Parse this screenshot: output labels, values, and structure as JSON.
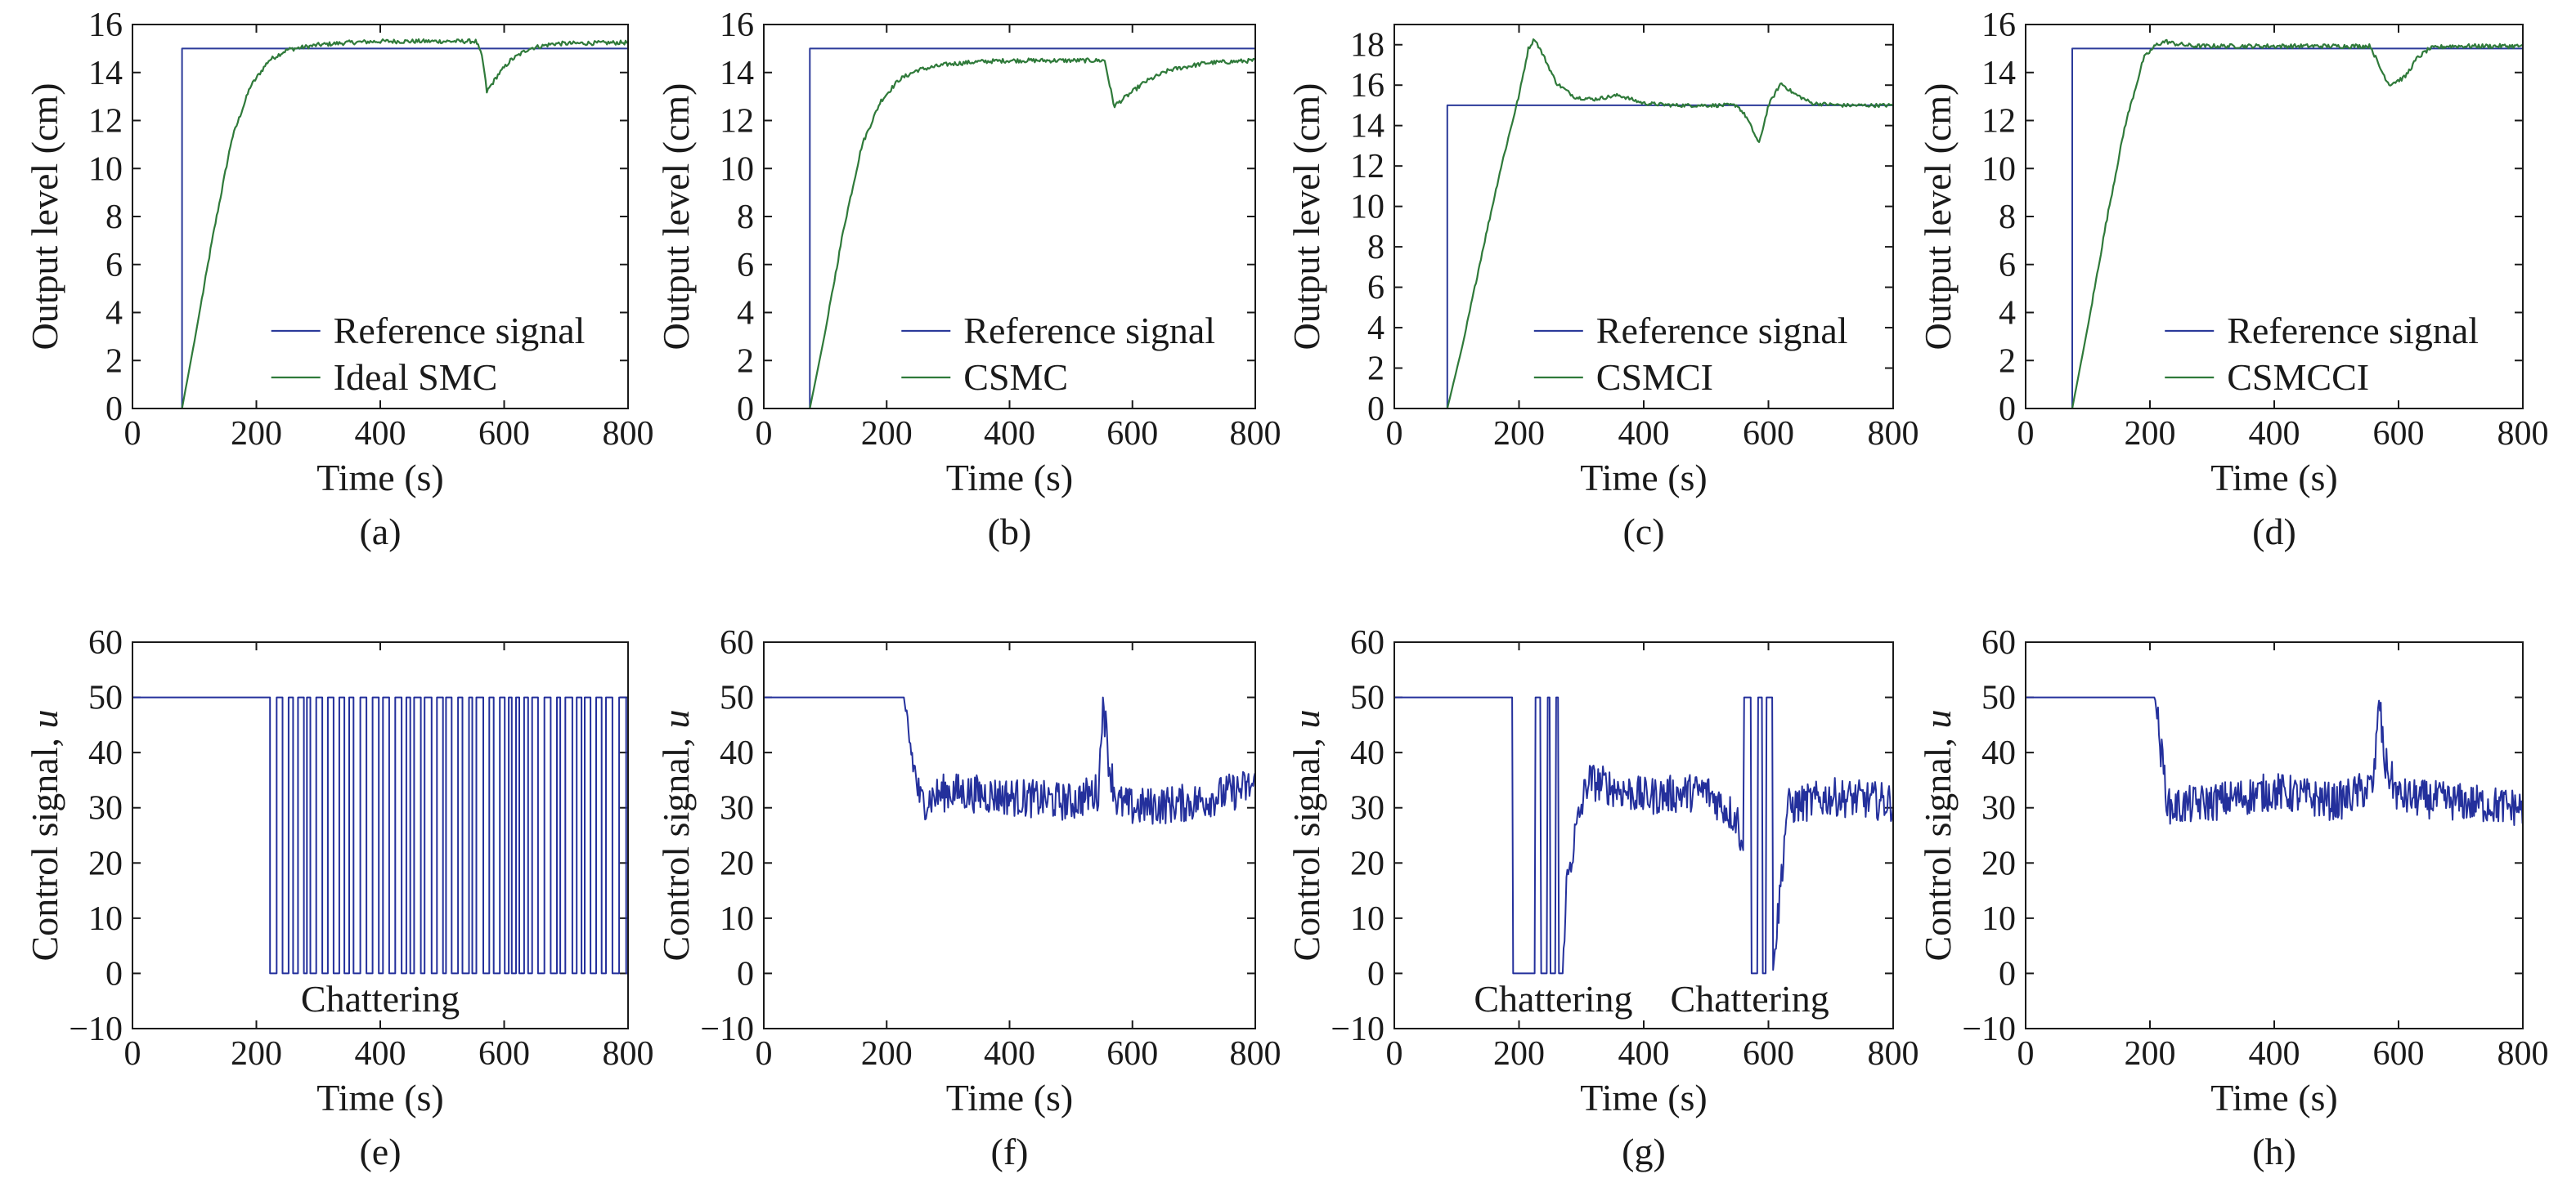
{
  "figure": {
    "colors": {
      "reference": "#2b3a9a",
      "response": "#2f7a3a",
      "control": "#24309c",
      "axis": "#1a1a1a"
    },
    "panels": [
      {
        "id": "a",
        "caption": "(a)",
        "kind": "output",
        "xlabel": "Time (s)",
        "ylabel": "Output level (cm)",
        "legend": [
          "Reference signal",
          "Ideal SMC"
        ],
        "legend_position": "bottom-right",
        "xticks": [
          "0",
          "200",
          "400",
          "600",
          "800"
        ],
        "yticks": [
          "0",
          "2",
          "4",
          "6",
          "8",
          "10",
          "12",
          "14",
          "16"
        ],
        "annotations": []
      },
      {
        "id": "b",
        "caption": "(b)",
        "kind": "output",
        "xlabel": "Time (s)",
        "ylabel": "Output level (cm)",
        "legend": [
          "Reference signal",
          "CSMC"
        ],
        "legend_position": "bottom-right",
        "xticks": [
          "0",
          "200",
          "400",
          "600",
          "800"
        ],
        "yticks": [
          "0",
          "2",
          "4",
          "6",
          "8",
          "10",
          "12",
          "14",
          "16"
        ],
        "annotations": []
      },
      {
        "id": "c",
        "caption": "(c)",
        "kind": "output",
        "xlabel": "Time (s)",
        "ylabel": "Output level (cm)",
        "legend": [
          "Reference signal",
          "CSMCI"
        ],
        "legend_position": "bottom-right",
        "xticks": [
          "0",
          "200",
          "400",
          "600",
          "800"
        ],
        "yticks": [
          "0",
          "2",
          "4",
          "6",
          "8",
          "10",
          "12",
          "14",
          "16",
          "18"
        ],
        "annotations": []
      },
      {
        "id": "d",
        "caption": "(d)",
        "kind": "output",
        "xlabel": "Time (s)",
        "ylabel": "Output level (cm)",
        "legend": [
          "Reference signal",
          "CSMCCI"
        ],
        "legend_position": "bottom-right",
        "xticks": [
          "0",
          "200",
          "400",
          "600",
          "800"
        ],
        "yticks": [
          "0",
          "2",
          "4",
          "6",
          "8",
          "10",
          "12",
          "14",
          "16"
        ],
        "annotations": []
      },
      {
        "id": "e",
        "caption": "(e)",
        "kind": "control",
        "xlabel": "Time (s)",
        "ylabel_prefix": "Control signal, ",
        "ylabel_var": "u",
        "legend": [],
        "xticks": [
          "0",
          "200",
          "400",
          "600",
          "800"
        ],
        "yticks": [
          "−10",
          "0",
          "10",
          "20",
          "30",
          "40",
          "50",
          "60"
        ],
        "annotations": [
          {
            "text": "Chattering",
            "x": 400,
            "y": -4.5
          }
        ]
      },
      {
        "id": "f",
        "caption": "(f)",
        "kind": "control",
        "xlabel": "Time (s)",
        "ylabel_prefix": "Control signal, ",
        "ylabel_var": "u",
        "legend": [],
        "xticks": [
          "0",
          "200",
          "400",
          "600",
          "800"
        ],
        "yticks": [
          "−10",
          "0",
          "10",
          "20",
          "30",
          "40",
          "50",
          "60"
        ],
        "annotations": []
      },
      {
        "id": "g",
        "caption": "(g)",
        "kind": "control",
        "xlabel": "Time (s)",
        "ylabel_prefix": "Control signal, ",
        "ylabel_var": "u",
        "legend": [],
        "xticks": [
          "0",
          "200",
          "400",
          "600",
          "800"
        ],
        "yticks": [
          "−10",
          "0",
          "10",
          "20",
          "30",
          "40",
          "50",
          "60"
        ],
        "annotations": [
          {
            "text": "Chattering",
            "x": 255,
            "y": -4.5
          },
          {
            "text": "Chattering",
            "x": 570,
            "y": -4.5
          }
        ]
      },
      {
        "id": "h",
        "caption": "(h)",
        "kind": "control",
        "xlabel": "Time (s)",
        "ylabel_prefix": "Control signal, ",
        "ylabel_var": "u",
        "legend": [],
        "xticks": [
          "0",
          "200",
          "400",
          "600",
          "800"
        ],
        "yticks": [
          "−10",
          "0",
          "10",
          "20",
          "30",
          "40",
          "50",
          "60"
        ],
        "annotations": []
      }
    ]
  },
  "chart_data": [
    {
      "panel": "a",
      "type": "line",
      "xlabel": "Time (s)",
      "ylabel": "Output level (cm)",
      "xlim": [
        0,
        800
      ],
      "ylim": [
        0,
        16
      ],
      "grid": false,
      "legend_position": "bottom-right",
      "series": [
        {
          "name": "Reference signal",
          "x": [
            80,
            80,
            800
          ],
          "y": [
            0,
            15,
            15
          ]
        },
        {
          "name": "Ideal SMC",
          "x": [
            80,
            100,
            130,
            160,
            190,
            220,
            250,
            300,
            350,
            400,
            450,
            500,
            555,
            565,
            572,
            590,
            610,
            640,
            680,
            800
          ],
          "y": [
            0,
            2.8,
            7.2,
            11.2,
            13.4,
            14.5,
            14.95,
            15.15,
            15.25,
            15.3,
            15.3,
            15.3,
            15.3,
            14.6,
            13.2,
            13.9,
            14.5,
            15.0,
            15.2,
            15.25
          ]
        }
      ]
    },
    {
      "panel": "b",
      "type": "line",
      "xlabel": "Time (s)",
      "ylabel": "Output level (cm)",
      "xlim": [
        0,
        800
      ],
      "ylim": [
        0,
        16
      ],
      "grid": false,
      "legend_position": "bottom-right",
      "series": [
        {
          "name": "Reference signal",
          "x": [
            75,
            75,
            800
          ],
          "y": [
            0,
            15,
            15
          ]
        },
        {
          "name": "CSMC",
          "x": [
            75,
            100,
            130,
            160,
            190,
            220,
            250,
            300,
            350,
            400,
            450,
            500,
            555,
            562,
            570,
            590,
            620,
            660,
            720,
            800
          ],
          "y": [
            0,
            3.2,
            7.5,
            11.0,
            12.8,
            13.7,
            14.1,
            14.35,
            14.45,
            14.5,
            14.5,
            14.5,
            14.5,
            13.6,
            12.6,
            13.0,
            13.6,
            14.1,
            14.4,
            14.5
          ]
        }
      ]
    },
    {
      "panel": "c",
      "type": "line",
      "xlabel": "Time (s)",
      "ylabel": "Output level (cm)",
      "xlim": [
        0,
        800
      ],
      "ylim": [
        0,
        19
      ],
      "grid": false,
      "legend_position": "bottom-right",
      "series": [
        {
          "name": "Reference signal",
          "x": [
            85,
            85,
            800
          ],
          "y": [
            0,
            15,
            15
          ]
        },
        {
          "name": "CSMCI",
          "x": [
            85,
            110,
            140,
            170,
            200,
            215,
            225,
            240,
            260,
            290,
            320,
            360,
            400,
            450,
            500,
            550,
            565,
            585,
            600,
            620,
            640,
            670,
            720,
            800
          ],
          "y": [
            0,
            3.2,
            7.6,
            11.8,
            15.5,
            17.8,
            18.3,
            17.4,
            16.1,
            15.4,
            15.3,
            15.5,
            15.1,
            15.0,
            15.0,
            15.0,
            14.4,
            13.1,
            15.0,
            16.1,
            15.6,
            15.1,
            15.0,
            15.0
          ]
        }
      ]
    },
    {
      "panel": "d",
      "type": "line",
      "xlabel": "Time (s)",
      "ylabel": "Output level (cm)",
      "xlim": [
        0,
        800
      ],
      "ylim": [
        0,
        16
      ],
      "grid": false,
      "legend_position": "bottom-right",
      "series": [
        {
          "name": "Reference signal",
          "x": [
            75,
            75,
            800
          ],
          "y": [
            0,
            15,
            15
          ]
        },
        {
          "name": "CSMCCI",
          "x": [
            75,
            100,
            130,
            160,
            190,
            210,
            225,
            240,
            270,
            300,
            400,
            500,
            555,
            570,
            585,
            610,
            630,
            650,
            680,
            800
          ],
          "y": [
            0,
            3.4,
            7.8,
            11.8,
            14.6,
            15.15,
            15.3,
            15.2,
            15.1,
            15.1,
            15.1,
            15.1,
            15.1,
            14.2,
            13.5,
            13.8,
            14.6,
            15.0,
            15.1,
            15.1
          ]
        }
      ]
    },
    {
      "panel": "e",
      "type": "line",
      "xlabel": "Time (s)",
      "ylabel": "Control signal, u",
      "xlim": [
        0,
        800
      ],
      "ylim": [
        -10,
        60
      ],
      "grid": false,
      "series": [
        {
          "name": "",
          "x": [
            0,
            222,
            222,
            230,
            230,
            800
          ],
          "y": [
            50,
            50,
            0,
            0,
            50,
            50
          ],
          "switching": {
            "from": 222,
            "to": 800,
            "low": 0,
            "high": 50,
            "period_s": 13.5
          }
        }
      ]
    },
    {
      "panel": "f",
      "type": "line",
      "xlabel": "Time (s)",
      "ylabel": "Control signal, u",
      "xlim": [
        0,
        800
      ],
      "ylim": [
        -10,
        60
      ],
      "grid": false,
      "series": [
        {
          "name": "",
          "x": [
            0,
            228,
            240,
            255,
            300,
            400,
            500,
            545,
            552,
            562,
            575,
            600,
            700,
            800
          ],
          "y": [
            50,
            50,
            40,
            31,
            33,
            32,
            31,
            33,
            50,
            38,
            31,
            30,
            31,
            34
          ],
          "noise_amplitude": 3.5
        }
      ]
    },
    {
      "panel": "g",
      "type": "line",
      "xlabel": "Time (s)",
      "ylabel": "Control signal, u",
      "xlim": [
        0,
        800
      ],
      "ylim": [
        -10,
        60
      ],
      "grid": false,
      "series": [
        {
          "name": "",
          "x": [
            0,
            190,
            190,
            225,
            225,
            235,
            235,
            245,
            245,
            250,
            250,
            258,
            258,
            263,
            263,
            270,
            275,
            290,
            310,
            400,
            500,
            550,
            560,
            560,
            572,
            572,
            582,
            582,
            590,
            590,
            596,
            596,
            607,
            607,
            615,
            630,
            700,
            800
          ],
          "y": [
            50,
            50,
            0,
            0,
            50,
            50,
            0,
            0,
            50,
            50,
            0,
            0,
            50,
            50,
            0,
            0,
            15,
            25,
            35,
            32,
            33,
            28,
            22,
            50,
            50,
            0,
            0,
            50,
            50,
            0,
            0,
            50,
            50,
            0,
            10,
            30,
            32,
            31
          ],
          "noise_amplitude": 3.5
        }
      ]
    },
    {
      "panel": "h",
      "type": "line",
      "xlabel": "Time (s)",
      "ylabel": "Control signal, u",
      "xlim": [
        0,
        800
      ],
      "ylim": [
        -10,
        60
      ],
      "grid": false,
      "series": [
        {
          "name": "",
          "x": [
            0,
            208,
            218,
            230,
            300,
            400,
            500,
            560,
            568,
            578,
            600,
            700,
            800
          ],
          "y": [
            50,
            50,
            40,
            30,
            31,
            33,
            31,
            34,
            50,
            38,
            32,
            31,
            30
          ],
          "noise_amplitude": 3.5
        }
      ]
    }
  ]
}
